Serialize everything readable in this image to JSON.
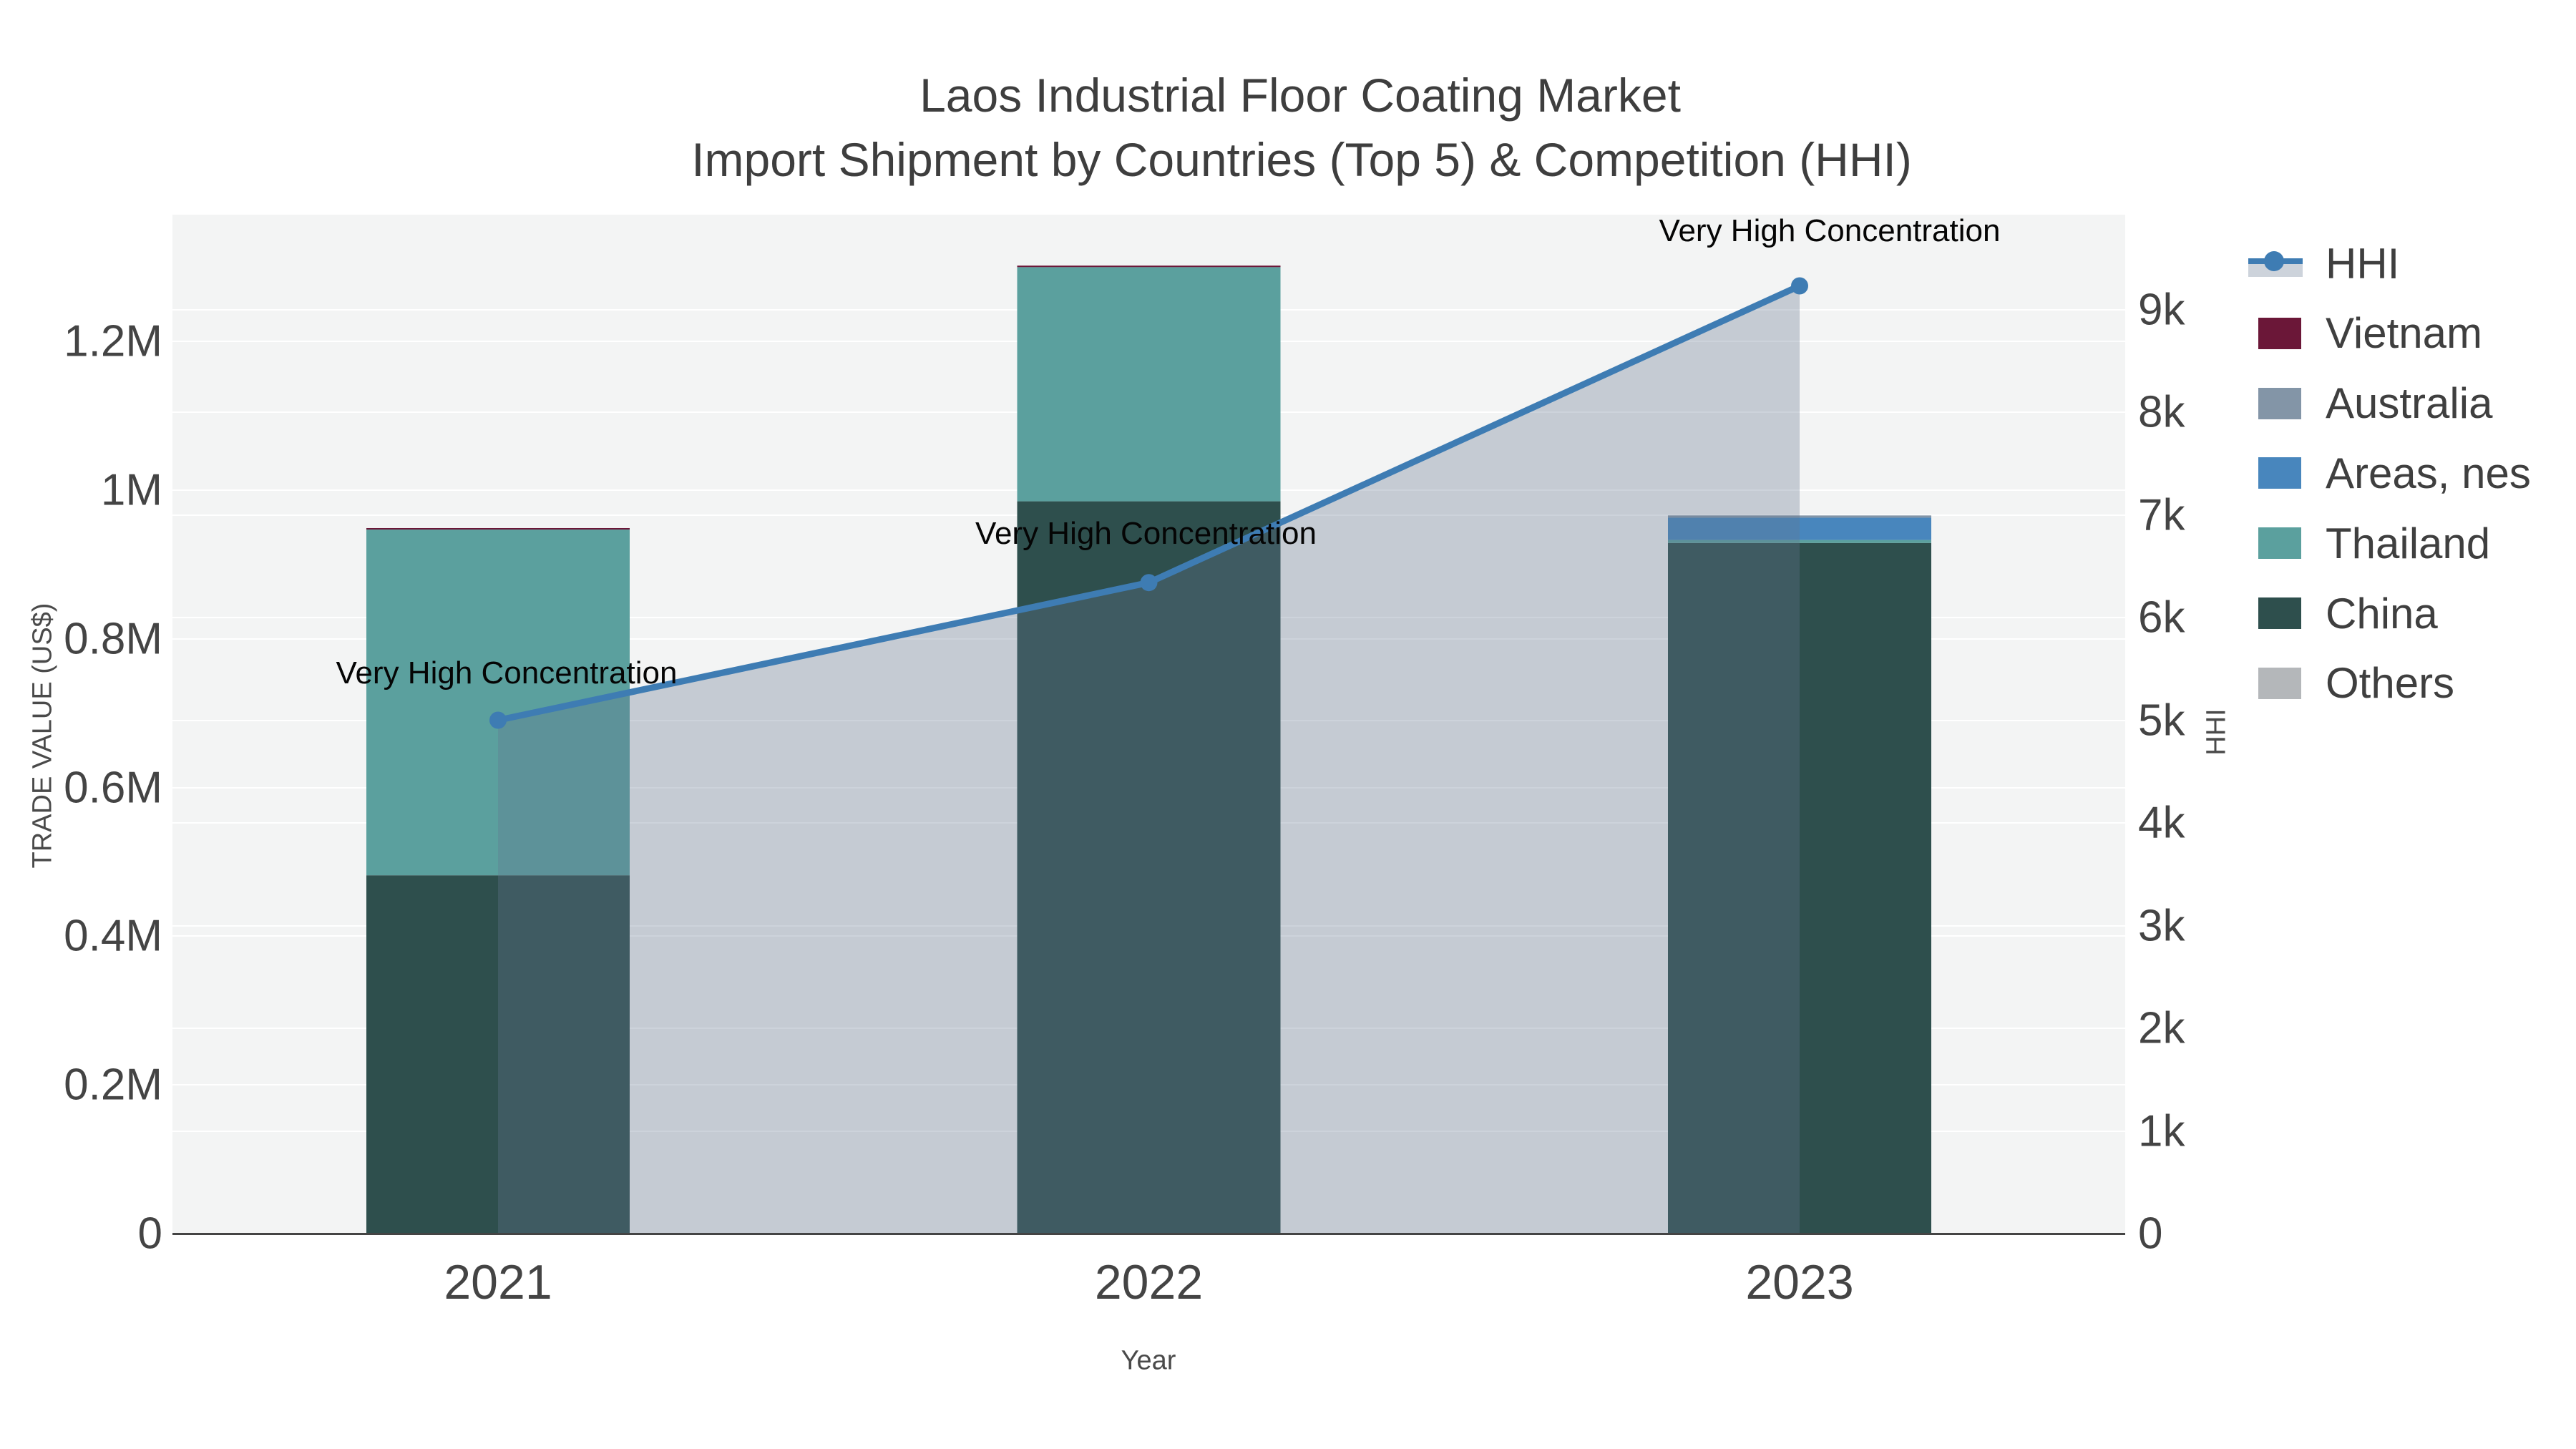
{
  "title": {
    "line1": "Laos Industrial Floor Coating Market",
    "line2": "Import Shipment by Countries (Top 5) & Competition (HHI)"
  },
  "axes": {
    "x": {
      "title": "Year",
      "ticks": [
        "2021",
        "2022",
        "2023"
      ]
    },
    "y_left": {
      "title": "TRADE VALUE (US$)",
      "ticks": [
        "0",
        "0.2M",
        "0.4M",
        "0.6M",
        "0.8M",
        "1M",
        "1.2M"
      ]
    },
    "y_right": {
      "title": "HHI",
      "ticks": [
        "0",
        "1k",
        "2k",
        "3k",
        "4k",
        "5k",
        "6k",
        "7k",
        "8k",
        "9k"
      ]
    }
  },
  "legend": {
    "items": [
      {
        "label": "HHI",
        "type": "line",
        "color": "#3e7cb3",
        "band_color": "#cdd3db"
      },
      {
        "label": "Vietnam",
        "type": "swatch",
        "color": "#6b1738"
      },
      {
        "label": "Australia",
        "type": "swatch",
        "color": "#8395a7"
      },
      {
        "label": "Areas, nes",
        "type": "swatch",
        "color": "#4886bd"
      },
      {
        "label": "Thailand",
        "type": "swatch",
        "color": "#5ba09e"
      },
      {
        "label": "China",
        "type": "swatch",
        "color": "#2e4f4d"
      },
      {
        "label": "Others",
        "type": "swatch",
        "color": "#b4b7ba"
      }
    ]
  },
  "chart_data": {
    "type": "combo_stacked_bar_line",
    "title": "Laos Industrial Floor Coating Market — Import Shipment by Countries (Top 5) & Competition (HHI)",
    "categories": [
      "2021",
      "2022",
      "2023"
    ],
    "xlabel": "Year",
    "ylabel_left": "TRADE VALUE (US$)",
    "ylabel_right": "HHI",
    "ylim_left": [
      0,
      1370000
    ],
    "ylim_right": [
      0,
      9920
    ],
    "grid": true,
    "legend_position": "right",
    "series": [
      {
        "name": "Vietnam",
        "type": "bar",
        "axis": "left",
        "color": "#6b1738",
        "values": [
          2000,
          2000,
          0
        ]
      },
      {
        "name": "Australia",
        "type": "bar",
        "axis": "left",
        "color": "#8395a7",
        "values": [
          0,
          0,
          3000
        ]
      },
      {
        "name": "Areas, nes",
        "type": "bar",
        "axis": "left",
        "color": "#4886bd",
        "values": [
          0,
          0,
          30000
        ]
      },
      {
        "name": "Thailand",
        "type": "bar",
        "axis": "left",
        "color": "#5ba09e",
        "values": [
          465000,
          315000,
          4000
        ]
      },
      {
        "name": "China",
        "type": "bar",
        "axis": "left",
        "color": "#2e4f4d",
        "values": [
          482000,
          985000,
          929000
        ]
      },
      {
        "name": "Others",
        "type": "bar",
        "axis": "left",
        "color": "#b4b7ba",
        "values": [
          0,
          0,
          0
        ]
      },
      {
        "name": "HHI",
        "type": "line_area",
        "axis": "right",
        "color": "#3e7cb3",
        "area_color": "rgba(100,117,143,0.32)",
        "values": [
          5000,
          6340,
          9230
        ]
      }
    ],
    "stack_order_bottom_to_top": [
      "China",
      "Thailand",
      "Areas, nes",
      "Australia",
      "Vietnam",
      "Others"
    ],
    "bar_totals": [
      949000,
      1302000,
      966000
    ],
    "annotations": [
      {
        "text": "Very High Concentration",
        "category": "2021"
      },
      {
        "text": "Very High Concentration",
        "category": "2022"
      },
      {
        "text": "Very High Concentration",
        "category": "2023"
      }
    ]
  }
}
